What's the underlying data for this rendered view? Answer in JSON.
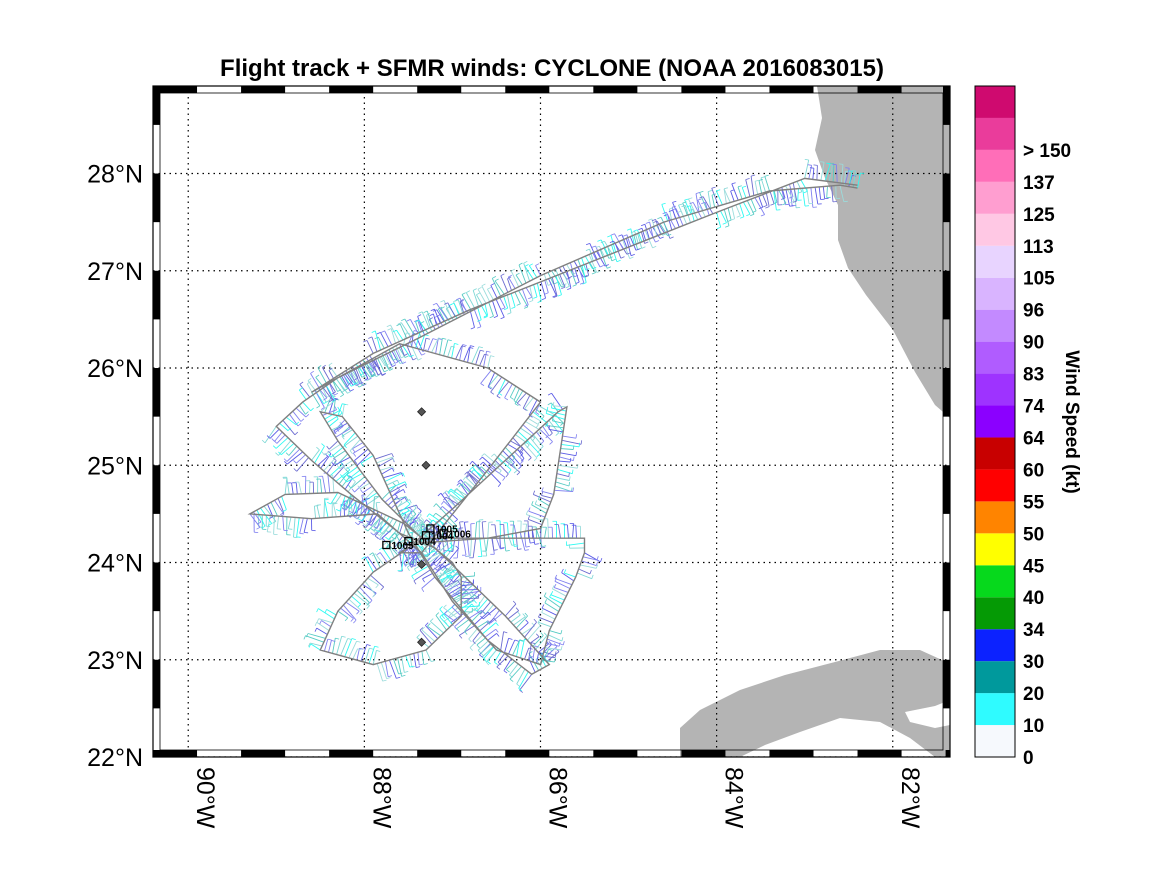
{
  "title": "Flight track + SFMR winds: CYCLONE (NOAA 2016083015)",
  "map": {
    "lon_range": [
      -90.4,
      -81.35
    ],
    "lat_range": [
      22.0,
      28.9
    ],
    "grid": true,
    "land_color": "#b4b4b4",
    "x_ticks": [
      {
        "value": -90,
        "label": "90°W"
      },
      {
        "value": -88,
        "label": "88°W"
      },
      {
        "value": -86,
        "label": "86°W"
      },
      {
        "value": -84,
        "label": "84°W"
      },
      {
        "value": -82,
        "label": "82°W"
      }
    ],
    "y_ticks": [
      {
        "value": 22,
        "label": "22°N"
      },
      {
        "value": 23,
        "label": "23°N"
      },
      {
        "value": 24,
        "label": "24°N"
      },
      {
        "value": 25,
        "label": "25°N"
      },
      {
        "value": 26,
        "label": "26°N"
      },
      {
        "value": 27,
        "label": "27°N"
      },
      {
        "value": 28,
        "label": "28°N"
      }
    ]
  },
  "track": {
    "line_color": "#808080",
    "points": [
      [
        -82.4,
        27.85
      ],
      [
        -82.6,
        27.88
      ],
      [
        -83.4,
        27.82
      ],
      [
        -84.6,
        27.5
      ],
      [
        -86.0,
        26.95
      ],
      [
        -87.4,
        26.3
      ],
      [
        -88.3,
        25.9
      ],
      [
        -88.7,
        25.65
      ],
      [
        -89.0,
        25.4
      ],
      [
        -88.6,
        25.05
      ],
      [
        -88.15,
        24.7
      ],
      [
        -87.6,
        24.3
      ],
      [
        -87.2,
        24.15
      ],
      [
        -86.4,
        23.45
      ],
      [
        -85.9,
        22.95
      ],
      [
        -86.1,
        22.85
      ],
      [
        -86.6,
        23.2
      ],
      [
        -87.2,
        23.85
      ],
      [
        -87.5,
        24.3
      ],
      [
        -87.9,
        25.1
      ],
      [
        -88.25,
        25.5
      ],
      [
        -88.5,
        25.55
      ],
      [
        -88.3,
        25.25
      ],
      [
        -87.8,
        24.65
      ],
      [
        -87.35,
        24.25
      ],
      [
        -86.5,
        24.25
      ],
      [
        -85.5,
        24.25
      ],
      [
        -85.5,
        24.1
      ],
      [
        -85.6,
        23.85
      ],
      [
        -85.9,
        23.3
      ],
      [
        -86.0,
        22.95
      ],
      [
        -86.5,
        23.1
      ],
      [
        -87.0,
        23.6
      ],
      [
        -87.35,
        24.1
      ],
      [
        -87.85,
        24.5
      ],
      [
        -88.6,
        24.45
      ],
      [
        -89.3,
        24.5
      ],
      [
        -88.9,
        24.7
      ],
      [
        -88.3,
        24.72
      ],
      [
        -87.55,
        24.4
      ],
      [
        -87.0,
        24.0
      ],
      [
        -86.9,
        23.85
      ],
      [
        -86.9,
        23.45
      ],
      [
        -87.3,
        23.1
      ],
      [
        -87.9,
        22.95
      ],
      [
        -88.5,
        23.1
      ],
      [
        -88.3,
        23.5
      ],
      [
        -87.9,
        23.9
      ],
      [
        -87.5,
        24.15
      ],
      [
        -87.0,
        24.55
      ],
      [
        -86.4,
        25.05
      ],
      [
        -85.8,
        25.55
      ],
      [
        -85.7,
        25.6
      ],
      [
        -85.75,
        25.3
      ],
      [
        -85.85,
        24.7
      ],
      [
        -86.0,
        24.35
      ],
      [
        -86.6,
        24.25
      ],
      [
        -87.4,
        24.2
      ],
      [
        -87.6,
        24.1
      ],
      [
        -87.35,
        24.1
      ],
      [
        -86.6,
        24.95
      ],
      [
        -86.0,
        25.65
      ],
      [
        -86.6,
        26.0
      ],
      [
        -87.6,
        26.25
      ],
      [
        -88.6,
        25.75
      ],
      [
        -87.9,
        26.15
      ],
      [
        -86.8,
        26.6
      ],
      [
        -85.4,
        27.1
      ],
      [
        -84.0,
        27.6
      ],
      [
        -83.0,
        27.95
      ],
      [
        -82.4,
        27.88
      ]
    ]
  },
  "barb_colors": [
    "#2dfaf2",
    "#7fd8d6",
    "#56cbc4",
    "#5a5ae6",
    "#8080f0",
    "#9bdcdc",
    "#6b6bd0"
  ],
  "drops": [
    {
      "lon": -87.35,
      "lat": 25.55
    },
    {
      "lon": -87.3,
      "lat": 25.0
    },
    {
      "lon": -87.35,
      "lat": 23.98
    },
    {
      "lon": -87.35,
      "lat": 23.18
    }
  ],
  "obs_labels": [
    {
      "lon": -87.25,
      "lat": 24.35,
      "text": "1005"
    },
    {
      "lon": -87.1,
      "lat": 24.3,
      "text": "1006"
    },
    {
      "lon": -87.3,
      "lat": 24.28,
      "text": "1004"
    },
    {
      "lon": -87.5,
      "lat": 24.22,
      "text": "1004"
    },
    {
      "lon": -87.75,
      "lat": 24.18,
      "text": "1005"
    }
  ],
  "colorbar": {
    "label": "Wind Speed (kt)",
    "bins": [
      {
        "color": "#f6f9fd",
        "label": "0"
      },
      {
        "color": "#2ffbff",
        "label": "10"
      },
      {
        "color": "#00999c",
        "label": "20"
      },
      {
        "color": "#0c22ff",
        "label": "30"
      },
      {
        "color": "#059a05",
        "label": "34"
      },
      {
        "color": "#06d91c",
        "label": "40"
      },
      {
        "color": "#ffff00",
        "label": "45"
      },
      {
        "color": "#ff8400",
        "label": "50"
      },
      {
        "color": "#ff0000",
        "label": "55"
      },
      {
        "color": "#c80000",
        "label": "60"
      },
      {
        "color": "#8b00ff",
        "label": "64"
      },
      {
        "color": "#9e33ff",
        "label": "74"
      },
      {
        "color": "#b05cff",
        "label": "83"
      },
      {
        "color": "#c38aff",
        "label": "90"
      },
      {
        "color": "#d9b4ff",
        "label": "96"
      },
      {
        "color": "#e8d4ff",
        "label": "105"
      },
      {
        "color": "#ffc8e4",
        "label": "113"
      },
      {
        "color": "#ff9ed0",
        "label": "125"
      },
      {
        "color": "#ff6eb8",
        "label": "137"
      },
      {
        "color": "#ea3c9b",
        "label": "> 150"
      },
      {
        "color": "#cf0a6f",
        "label": ""
      }
    ]
  }
}
